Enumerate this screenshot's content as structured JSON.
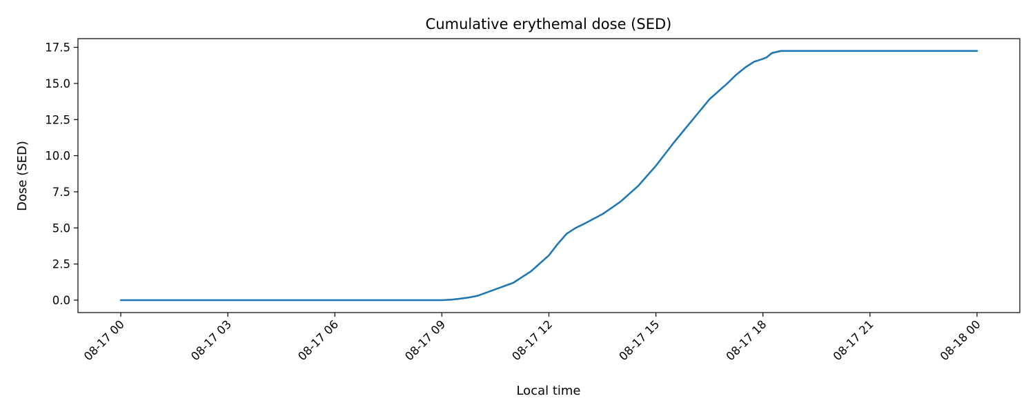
{
  "chart_data": {
    "type": "line",
    "title": "Cumulative erythemal dose (SED)",
    "xlabel": "Local time",
    "ylabel": "Dose (SED)",
    "x_unit": "hours since 08-17 00:00",
    "xlim": [
      -1.2,
      25.2
    ],
    "ylim": [
      -0.86,
      18.1
    ],
    "grid": false,
    "legend": "none",
    "line_color": "#1f77b4",
    "x_ticks": [
      {
        "value": 0,
        "label": "08-17 00"
      },
      {
        "value": 3,
        "label": "08-17 03"
      },
      {
        "value": 6,
        "label": "08-17 06"
      },
      {
        "value": 9,
        "label": "08-17 09"
      },
      {
        "value": 12,
        "label": "08-17 12"
      },
      {
        "value": 15,
        "label": "08-17 15"
      },
      {
        "value": 18,
        "label": "08-17 18"
      },
      {
        "value": 21,
        "label": "08-17 21"
      },
      {
        "value": 24,
        "label": "08-18 00"
      }
    ],
    "y_ticks": [
      {
        "value": 0,
        "label": "0.0"
      },
      {
        "value": 2.5,
        "label": "2.5"
      },
      {
        "value": 5,
        "label": "5.0"
      },
      {
        "value": 7.5,
        "label": "7.5"
      },
      {
        "value": 10,
        "label": "10.0"
      },
      {
        "value": 12.5,
        "label": "12.5"
      },
      {
        "value": 15,
        "label": "15.0"
      },
      {
        "value": 17.5,
        "label": "17.5"
      }
    ],
    "series": [
      {
        "x": [
          0,
          3,
          6,
          9,
          9.25,
          9.5,
          9.75,
          10,
          10.5,
          11,
          11.5,
          12,
          12.25,
          12.5,
          12.75,
          13,
          13.5,
          14,
          14.5,
          15,
          15.5,
          16,
          16.5,
          17,
          17.25,
          17.5,
          17.75,
          18,
          18.1,
          18.25,
          18.5,
          19,
          20,
          21,
          22,
          23,
          24
        ],
        "y": [
          0,
          0,
          0,
          0,
          0.03,
          0.1,
          0.18,
          0.3,
          0.75,
          1.2,
          2.0,
          3.1,
          3.9,
          4.6,
          5.0,
          5.3,
          5.95,
          6.8,
          7.9,
          9.3,
          10.9,
          12.4,
          13.9,
          15.0,
          15.6,
          16.1,
          16.5,
          16.7,
          16.8,
          17.1,
          17.25,
          17.25,
          17.25,
          17.25,
          17.25,
          17.25,
          17.25
        ]
      }
    ]
  }
}
